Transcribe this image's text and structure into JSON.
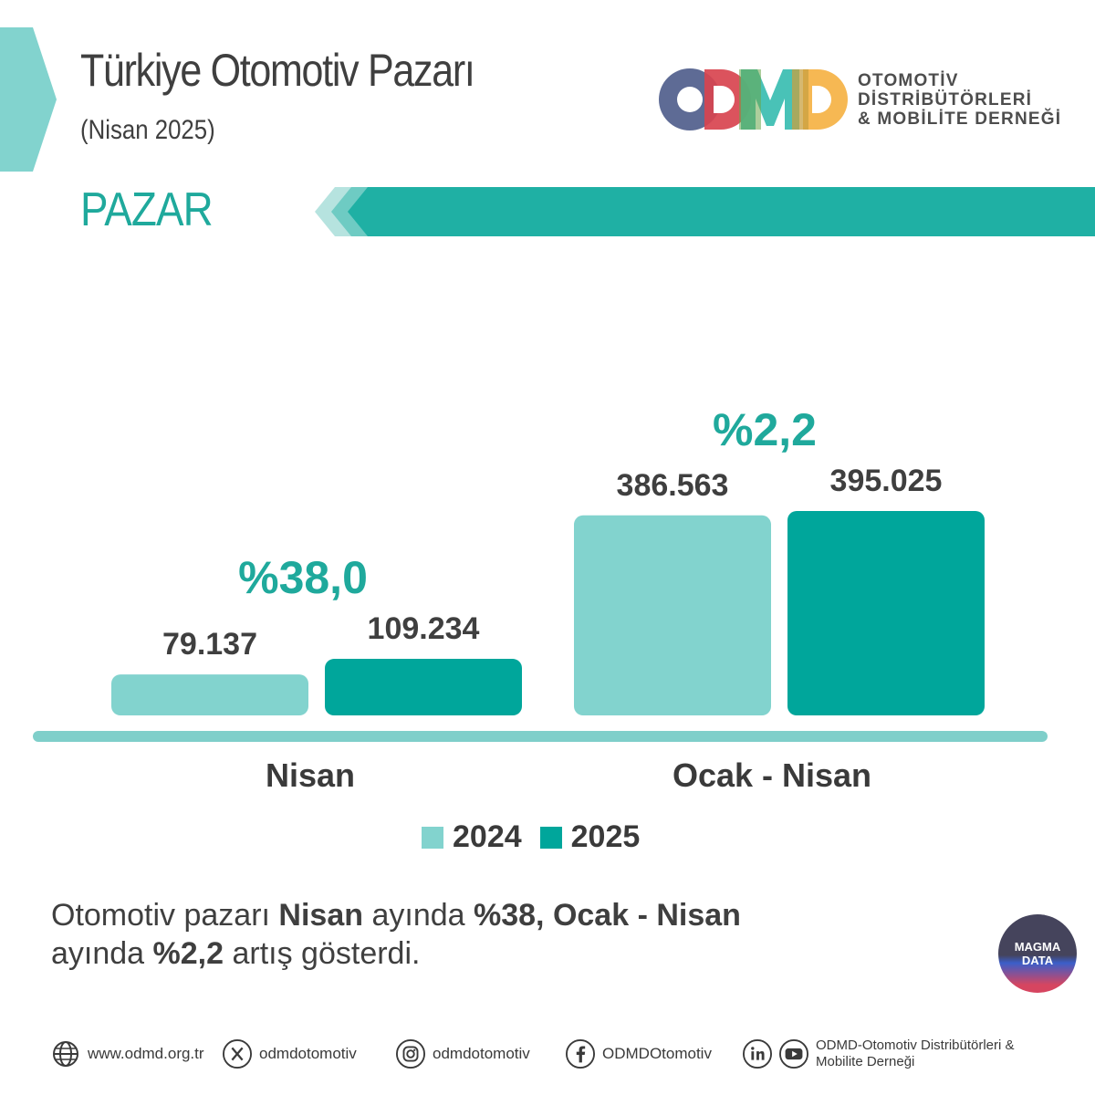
{
  "header": {
    "title": "Türkiye Otomotiv Pazarı",
    "subtitle": "(Nisan 2025)",
    "section": "PAZAR"
  },
  "logo": {
    "letters": "ODMD",
    "name_lines": [
      "OTOMOTİV",
      "DİSTRİBÜTÖRLERİ",
      "& MOBİLİTE DERNEĞİ"
    ]
  },
  "colors": {
    "accent": "#1fa99c",
    "bar_2024": "#82d3ce",
    "bar_2025": "#00a69b",
    "baseline": "#7fcfca"
  },
  "chart_data": {
    "type": "bar",
    "categories": [
      "Nisan",
      "Ocak - Nisan"
    ],
    "series": [
      {
        "name": "2024",
        "values": [
          79137,
          386563
        ],
        "labels": [
          "79.137",
          "386.563"
        ]
      },
      {
        "name": "2025",
        "values": [
          109234,
          395025
        ],
        "labels": [
          "109.234",
          "395.025"
        ]
      }
    ],
    "changes": [
      "%38,0",
      "%2,2"
    ],
    "legend": "bottom-center",
    "grid": false
  },
  "summary": {
    "parts": [
      {
        "text": "Otomotiv pazarı ",
        "bold": false
      },
      {
        "text": "Nisan",
        "bold": true
      },
      {
        "text": " ayında ",
        "bold": false
      },
      {
        "text": "%38, Ocak - Nisan",
        "bold": true
      },
      {
        "text": " ayında ",
        "bold": false
      },
      {
        "text": "%2,2",
        "bold": true
      },
      {
        "text": " artış gösterdi.",
        "bold": false
      }
    ]
  },
  "badge": {
    "line1": "MAGMA",
    "line2": "DATA"
  },
  "footer": {
    "website": {
      "icon": "globe-icon",
      "text": "www.odmd.org.tr"
    },
    "x": {
      "icon": "x-icon",
      "text": "odmdotomotiv"
    },
    "instagram": {
      "icon": "instagram-icon",
      "text": "odmdotomotiv"
    },
    "facebook": {
      "icon": "facebook-icon",
      "text": "ODMDOtomotiv"
    },
    "org": {
      "icons": [
        "linkedin-icon",
        "youtube-icon"
      ],
      "text": "ODMD-Otomotiv Distribütörleri & Mobilite Derneği"
    }
  }
}
